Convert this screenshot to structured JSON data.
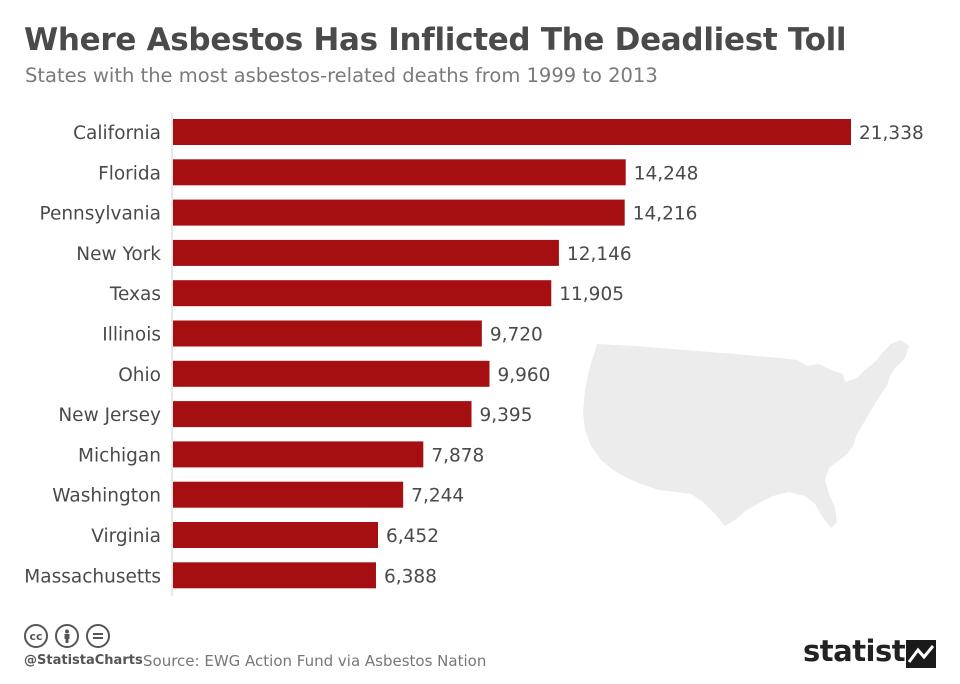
{
  "title": "Where Asbestos Has Inflicted The Deadliest Toll",
  "subtitle": "States with the most asbestos-related deaths from 1999 to 2013",
  "footer": {
    "handle": "@StatistaCharts",
    "source": "Source: EWG Action Fund via Asbestos Nation",
    "brand": "statista"
  },
  "colors": {
    "bar": "#a50f12",
    "text": "#4a4a4a",
    "map": "#ececec"
  },
  "chart_data": {
    "type": "bar",
    "orientation": "horizontal",
    "categories": [
      "California",
      "Florida",
      "Pennsylvania",
      "New York",
      "Texas",
      "Illinois",
      "Ohio",
      "New Jersey",
      "Michigan",
      "Washington",
      "Virginia",
      "Massachusetts"
    ],
    "values": [
      21338,
      14248,
      14216,
      12146,
      11905,
      9720,
      9960,
      9395,
      7878,
      7244,
      6452,
      6388
    ],
    "value_labels": [
      "21,338",
      "14,248",
      "14,216",
      "12,146",
      "11,905",
      "9,720",
      "9,960",
      "9,395",
      "7,878",
      "7,244",
      "6,452",
      "6,388"
    ],
    "title": "Where Asbestos Has Inflicted The Deadliest Toll",
    "subtitle": "States with the most asbestos-related deaths from 1999 to 2013",
    "xlim": [
      0,
      21338
    ],
    "grid": false,
    "legend": "none"
  }
}
